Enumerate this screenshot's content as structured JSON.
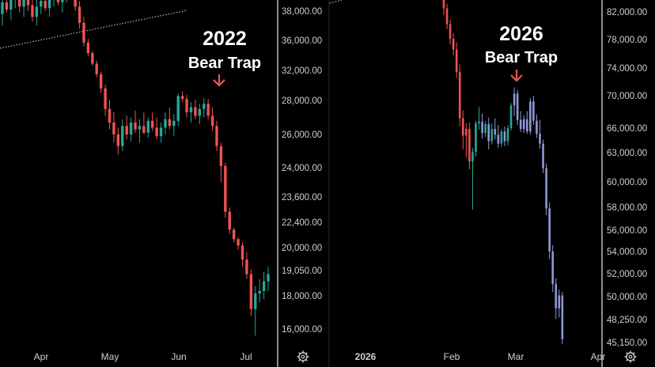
{
  "colors": {
    "background": "#000000",
    "up_2022": "#26a69a",
    "down_2022": "#ef5350",
    "down_2026": "#8f98d8",
    "up_2026": "#26a69a",
    "mixed_2026": "#ef5350",
    "axis_text": "#cfcfcf",
    "divider": "#d8d8d8",
    "arrow": "#ef5350",
    "trendline": "#d9d9d9",
    "annotation": "#ffffff"
  },
  "icons": {
    "settings_left": "gear-icon",
    "settings_right": "gear-icon"
  },
  "chart_data": [
    {
      "type": "candlestick",
      "panel": "left",
      "annotation": {
        "year": "2022",
        "label": "Bear Trap"
      },
      "y_scale": "custom-ticks",
      "ylim": [
        15150,
        40000
      ],
      "y_ticks": [
        "38,000.00",
        "36,000.00",
        "32,000.00",
        "28,000.00",
        "26,000.00",
        "24,000.00",
        "23,600.00",
        "22,400.00",
        "20,000.00",
        "19,050.00",
        "18,000.00",
        "16,000.00"
      ],
      "x_ticks": [
        "Apr",
        "May",
        "Jun",
        "Jul"
      ],
      "ohlc": [
        [
          37800,
          39400,
          37000,
          38600
        ],
        [
          38600,
          39900,
          37900,
          38100
        ],
        [
          38100,
          39200,
          37400,
          38900
        ],
        [
          38900,
          40000,
          38200,
          39300
        ],
        [
          39300,
          39800,
          37900,
          38300
        ],
        [
          38300,
          39500,
          37600,
          38800
        ],
        [
          38800,
          39600,
          38000,
          38400
        ],
        [
          38400,
          39000,
          37300,
          37600
        ],
        [
          37600,
          38900,
          37000,
          38300
        ],
        [
          38300,
          39200,
          37800,
          38700
        ],
        [
          38700,
          39400,
          38000,
          38200
        ],
        [
          38200,
          39000,
          37600,
          38900
        ],
        [
          38900,
          39800,
          38300,
          39100
        ],
        [
          39100,
          39700,
          38400,
          38600
        ],
        [
          38600,
          39300,
          37900,
          39000
        ],
        [
          39000,
          39900,
          38600,
          39500
        ],
        [
          39500,
          39900,
          38800,
          39000
        ],
        [
          39000,
          39600,
          38000,
          38300
        ],
        [
          38300,
          38700,
          36800,
          37200
        ],
        [
          37200,
          37600,
          35200,
          35700
        ],
        [
          35700,
          36100,
          33900,
          34300
        ],
        [
          34300,
          34600,
          32600,
          32900
        ],
        [
          32900,
          33300,
          31100,
          31500
        ],
        [
          31500,
          31800,
          29000,
          29600
        ],
        [
          29600,
          30100,
          27100,
          27500
        ],
        [
          27500,
          28100,
          26300,
          26700
        ],
        [
          26700,
          27300,
          25500,
          26000
        ],
        [
          26000,
          26400,
          24800,
          25300
        ],
        [
          25300,
          26900,
          25000,
          26500
        ],
        [
          26500,
          27100,
          25700,
          26000
        ],
        [
          26000,
          27000,
          25600,
          26700
        ],
        [
          26700,
          27400,
          26100,
          26300
        ],
        [
          26300,
          26900,
          25500,
          26500
        ],
        [
          26500,
          27300,
          26000,
          26100
        ],
        [
          26100,
          27000,
          25800,
          26800
        ],
        [
          26800,
          27300,
          26200,
          26400
        ],
        [
          26400,
          27000,
          25700,
          25900
        ],
        [
          25900,
          26700,
          25500,
          26400
        ],
        [
          26400,
          27300,
          26000,
          26900
        ],
        [
          26900,
          27600,
          26300,
          26500
        ],
        [
          26500,
          27200,
          25900,
          26800
        ],
        [
          26800,
          28900,
          26500,
          28600
        ],
        [
          28600,
          29200,
          27900,
          28200
        ],
        [
          28200,
          28700,
          27000,
          27300
        ],
        [
          27300,
          27900,
          26700,
          27600
        ],
        [
          27600,
          28100,
          26900,
          27100
        ],
        [
          27100,
          27800,
          26600,
          27500
        ],
        [
          27500,
          28300,
          27000,
          27800
        ],
        [
          27800,
          28200,
          26900,
          27100
        ],
        [
          27100,
          27600,
          26200,
          26500
        ],
        [
          26500,
          26800,
          25000,
          25300
        ],
        [
          25300,
          25500,
          23800,
          24100
        ],
        [
          24100,
          24300,
          22600,
          22900
        ],
        [
          22900,
          23100,
          21300,
          21700
        ],
        [
          21700,
          21900,
          20500,
          20800
        ],
        [
          20800,
          21000,
          19900,
          20200
        ],
        [
          20200,
          20500,
          19200,
          19500
        ],
        [
          19500,
          19800,
          18700,
          18900
        ],
        [
          18900,
          19100,
          16800,
          17200
        ],
        [
          17200,
          18400,
          15600,
          18100
        ],
        [
          18100,
          18700,
          17600,
          18200
        ],
        [
          18200,
          19000,
          17800,
          18600
        ],
        [
          18600,
          19200,
          18200,
          18900
        ]
      ]
    },
    {
      "type": "candlestick",
      "panel": "right",
      "annotation": {
        "year": "2026",
        "label": "Bear Trap"
      },
      "y_scale": "custom-ticks",
      "ylim": [
        44600,
        84000
      ],
      "y_ticks": [
        "82,000.00",
        "78,000.00",
        "74,000.00",
        "70,000.00",
        "66,000.00",
        "63,000.00",
        "60,000.00",
        "58,000.00",
        "56,000.00",
        "54,000.00",
        "52,000.00",
        "50,000.00",
        "48,250.00",
        "45,150.00"
      ],
      "x_ticks": [
        "2026",
        "Feb",
        "Mar",
        "Apr"
      ],
      "ohlc": [
        [
          83800,
          84000,
          81500,
          82500
        ],
        [
          82500,
          83200,
          79500,
          80200
        ],
        [
          80200,
          80900,
          77300,
          78100
        ],
        [
          78100,
          78900,
          75800,
          76600
        ],
        [
          76600,
          77600,
          72600,
          73400
        ],
        [
          73400,
          74500,
          66200,
          67200
        ],
        [
          67200,
          68200,
          63400,
          65100
        ],
        [
          65100,
          66600,
          62500,
          65900
        ],
        [
          65900,
          66700,
          61300,
          62100
        ],
        [
          62100,
          63600,
          57800,
          63100
        ],
        [
          63100,
          66900,
          62600,
          66600
        ],
        [
          66600,
          68600,
          65800,
          66800
        ],
        [
          66800,
          67800,
          64700,
          65400
        ],
        [
          65400,
          66900,
          64900,
          66500
        ],
        [
          66500,
          67300,
          63400,
          64400
        ],
        [
          64400,
          66600,
          64000,
          65900
        ],
        [
          65900,
          67200,
          64600,
          65200
        ],
        [
          65200,
          66400,
          63600,
          64100
        ],
        [
          64100,
          65900,
          63700,
          65600
        ],
        [
          65600,
          66200,
          63800,
          64400
        ],
        [
          64400,
          66400,
          63900,
          66000
        ],
        [
          66000,
          69100,
          65700,
          68800
        ],
        [
          68800,
          71200,
          67500,
          70300
        ],
        [
          70300,
          70800,
          66400,
          67000
        ],
        [
          67000,
          68100,
          65500,
          65900
        ],
        [
          65900,
          67600,
          65400,
          67100
        ],
        [
          67100,
          68100,
          65300,
          65600
        ],
        [
          65600,
          69700,
          65200,
          69300
        ],
        [
          69300,
          70000,
          66400,
          66900
        ],
        [
          66900,
          67700,
          64800,
          65300
        ],
        [
          65300,
          67000,
          63500,
          64100
        ],
        [
          64100,
          64600,
          60900,
          61400
        ],
        [
          61400,
          61900,
          57300,
          57900
        ],
        [
          57900,
          58400,
          53300,
          54000
        ],
        [
          54000,
          54600,
          50400,
          51100
        ],
        [
          51100,
          51600,
          48300,
          49100
        ],
        [
          49100,
          50600,
          48400,
          50100
        ],
        [
          50100,
          50400,
          44900,
          45600
        ]
      ]
    }
  ]
}
